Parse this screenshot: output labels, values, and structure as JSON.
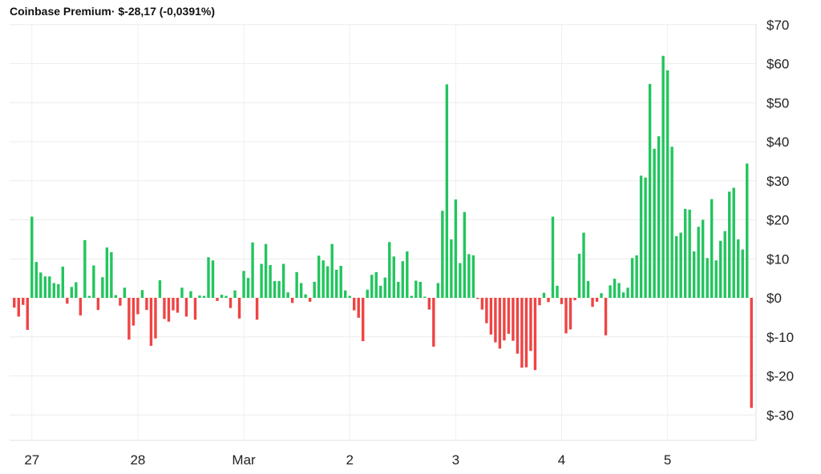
{
  "header": {
    "name": "Coinbase Premium",
    "separator": "·",
    "value": "$-28,17",
    "percent": "(-0,0391%)"
  },
  "chart_data": {
    "type": "bar",
    "title": "Coinbase Premium",
    "xlabel": "",
    "ylabel": "",
    "ylim": [
      -36,
      70
    ],
    "y_ticks": [
      70,
      60,
      50,
      40,
      30,
      20,
      10,
      0,
      -10,
      -20,
      -30
    ],
    "y_tick_labels": [
      "$70",
      "$60",
      "$50",
      "$40",
      "$30",
      "$20",
      "$10",
      "$0",
      "$-10",
      "$-20",
      "$-30"
    ],
    "x_ticks": [
      "27",
      "28",
      "Mar",
      "2",
      "3",
      "4",
      "5"
    ],
    "bars_per_day": 24,
    "positive_color": "#22c55e",
    "negative_color": "#ef4444",
    "grid": true,
    "values": [
      -2.5,
      -4.8,
      -1.8,
      -8.2,
      20.8,
      9.2,
      6.5,
      5.5,
      5.5,
      3.8,
      3.5,
      8.0,
      -1.5,
      2.8,
      4.0,
      -4.5,
      14.8,
      0.5,
      8.3,
      -3.1,
      5.3,
      12.9,
      11.7,
      0.7,
      -2.0,
      2.6,
      -10.7,
      -7.1,
      -4.2,
      2.0,
      -3.1,
      -12.3,
      -10.4,
      4.5,
      -5.4,
      -6.1,
      -3.2,
      -3.8,
      2.6,
      -4.8,
      1.7,
      -5.6,
      0.6,
      0.5,
      10.4,
      9.6,
      -0.8,
      0.8,
      0.5,
      -2.6,
      1.9,
      -5.3,
      6.9,
      5.1,
      14.2,
      -5.6,
      8.7,
      13.8,
      8.4,
      4.3,
      4.3,
      8.7,
      1.4,
      -1.3,
      6.6,
      3.8,
      0.9,
      -1.0,
      4.1,
      10.8,
      9.6,
      8.1,
      13.8,
      7.2,
      8.2,
      1.9,
      0.5,
      -3.2,
      -5.1,
      -11.1,
      2.1,
      5.9,
      6.6,
      3.1,
      5.2,
      14.3,
      10.6,
      4.1,
      9.4,
      11.9,
      0.5,
      4.4,
      4.1,
      0.3,
      -3.0,
      -12.5,
      3.8,
      22.3,
      54.7,
      15.0,
      25.2,
      8.9,
      22.0,
      11.2,
      10.9,
      -0.3,
      -3.0,
      -6.5,
      -9.4,
      -11.4,
      -13.0,
      -10.9,
      -9.2,
      -11.0,
      -14.3,
      -17.9,
      -17.8,
      -13.6,
      -18.5,
      -1.9,
      1.3,
      -1.1,
      20.8,
      3.1,
      -1.6,
      -9.1,
      -8.1,
      -0.6,
      11.3,
      16.7,
      4.3,
      -2.3,
      -1.0,
      1.2,
      -9.6,
      3.2,
      4.9,
      3.8,
      1.4,
      2.6,
      10.2,
      10.9,
      31.3,
      30.8,
      54.8,
      38.2,
      41.4,
      62.0,
      58.3,
      38.7,
      15.8,
      16.7,
      22.8,
      22.6,
      11.9,
      18.2,
      20.0,
      10.2,
      25.3,
      9.6,
      14.6,
      17.1,
      27.2,
      28.2,
      15.0,
      12.4,
      34.4,
      -28.2
    ]
  }
}
